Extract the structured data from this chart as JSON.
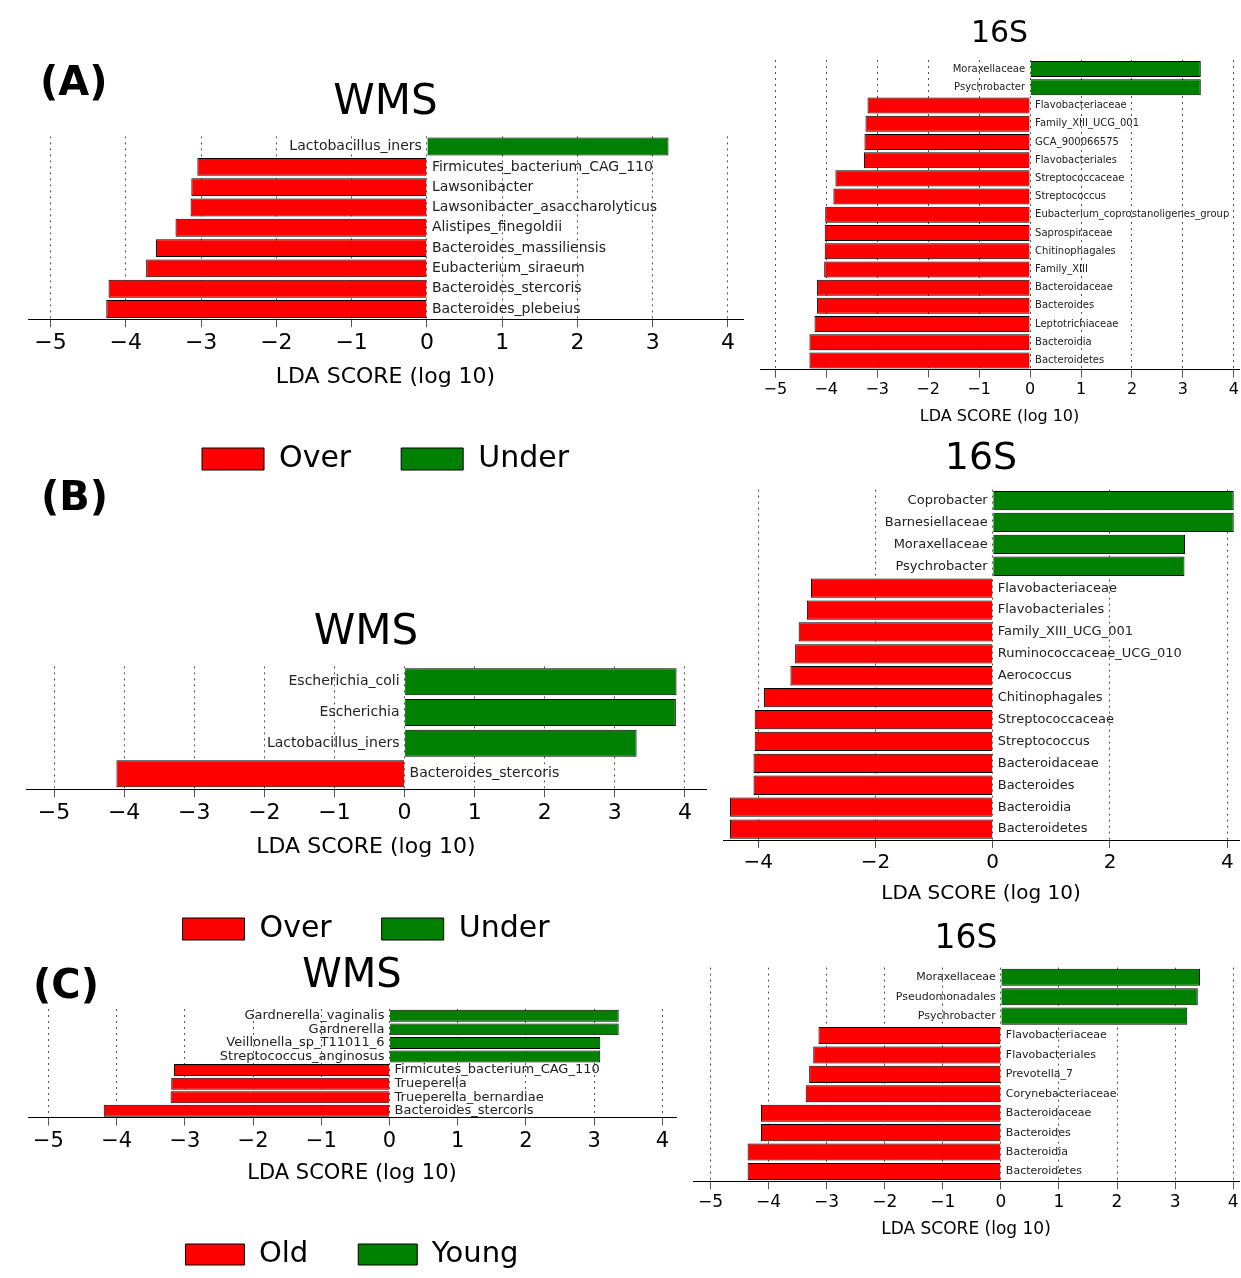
{
  "chart_data": [
    {
      "type": "bar",
      "orientation": "horizontal",
      "title": "WMS",
      "xlabel": "LDA SCORE (log 10)",
      "annotations": [
        "(A)"
      ],
      "categories": [
        "Lactobacillus_iners",
        "Firmicutes_bacterium_CAG_110",
        "Lawsonibacter",
        "Lawsonibacter_asaccharolyticus",
        "Alistipes_finegoldii",
        "Bacteroides_massiliensis",
        "Eubacterium_siraeum",
        "Bacteroides_stercoris",
        "Bacteroides_plebeius"
      ],
      "series": [
        {
          "name": "Over",
          "color": "#ff0000",
          "values": [
            null,
            -3.05,
            -3.13,
            -3.14,
            -3.34,
            -3.6,
            -3.73,
            -4.23,
            -4.26
          ]
        },
        {
          "name": "Under",
          "color": "#008000",
          "values": [
            3.21,
            null,
            null,
            null,
            null,
            null,
            null,
            null,
            null
          ]
        }
      ],
      "xlim": [
        -5.3,
        4.2
      ],
      "xticks": [
        -5,
        -4,
        -3,
        -2,
        -1,
        0,
        1,
        2,
        3,
        4
      ],
      "grid": "x",
      "legend": "bottom"
    },
    {
      "type": "bar",
      "orientation": "horizontal",
      "title": "16S",
      "xlabel": "LDA SCORE (log 10)",
      "categories": [
        "Moraxellaceae",
        "Psychrobacter",
        "Flavobacteriaceae",
        "Family_XIII_UCG_001",
        "GCA_900066575",
        "Flavobacteriales",
        "Streptococcaceae",
        "Streptococcus",
        "Eubacterium_coprostanoligenes_group",
        "Saprospiraceae",
        "Chitinophagales",
        "Family_XIII",
        "Bacteroidaceae",
        "Bacteroides",
        "Leptotrichiaceae",
        "Bacteroidia",
        "Bacteroidetes"
      ],
      "series": [
        {
          "color": "#ff0000",
          "values": [
            null,
            null,
            -3.19,
            -3.23,
            -3.25,
            -3.26,
            -3.82,
            -3.86,
            -4.02,
            -4.03,
            -4.03,
            -4.04,
            -4.18,
            -4.18,
            -4.23,
            -4.33,
            -4.33
          ]
        },
        {
          "color": "#008000",
          "values": [
            3.35,
            3.35,
            null,
            null,
            null,
            null,
            null,
            null,
            null,
            null,
            null,
            null,
            null,
            null,
            null,
            null,
            null
          ]
        }
      ],
      "xlim": [
        -5.3,
        4.1
      ],
      "xticks": [
        -5,
        -4,
        -3,
        -2,
        -1,
        0,
        1,
        2,
        3,
        4
      ],
      "grid": "x"
    },
    {
      "type": "bar",
      "orientation": "horizontal",
      "title": "WMS",
      "xlabel": "LDA SCORE (log 10)",
      "annotations": [
        "(B)"
      ],
      "categories": [
        "Escherichia_coli",
        "Escherichia",
        "Lactobacillus_iners",
        "Bacteroides_stercoris"
      ],
      "series": [
        {
          "name": "Over",
          "color": "#ff0000",
          "values": [
            null,
            null,
            null,
            -4.11
          ]
        },
        {
          "name": "Under",
          "color": "#008000",
          "values": [
            3.88,
            3.87,
            3.31,
            null
          ]
        }
      ],
      "xlim": [
        -5.4,
        4.3
      ],
      "xticks": [
        -5,
        -4,
        -3,
        -2,
        -1,
        0,
        1,
        2,
        3,
        4
      ],
      "grid": "x",
      "legend": "bottom"
    },
    {
      "type": "bar",
      "orientation": "horizontal",
      "title": "16S",
      "xlabel": "LDA SCORE (log 10)",
      "categories": [
        "Coprobacter",
        "Barnesiellaceae",
        "Moraxellaceae",
        "Psychrobacter",
        "Flavobacteriaceae",
        "Flavobacteriales",
        "Family_XIII_UCG_001",
        "Ruminococcaceae_UCG_010",
        "Aerococcus",
        "Chitinophagales",
        "Streptococcaceae",
        "Streptococcus",
        "Bacteroidaceae",
        "Bacteroides",
        "Bacteroidia",
        "Bacteroidetes"
      ],
      "series": [
        {
          "color": "#ff0000",
          "values": [
            null,
            null,
            null,
            null,
            -3.1,
            -3.17,
            -3.31,
            -3.37,
            -3.45,
            -3.9,
            -4.06,
            -4.06,
            -4.08,
            -4.08,
            -4.48,
            -4.48
          ]
        },
        {
          "color": "#008000",
          "values": [
            4.11,
            4.11,
            3.28,
            3.27,
            null,
            null,
            null,
            null,
            null,
            null,
            null,
            null,
            null,
            null,
            null,
            null
          ]
        }
      ],
      "xlim": [
        -4.6,
        4.2
      ],
      "xticks": [
        -4,
        -2,
        0,
        2,
        4
      ],
      "grid": "x"
    },
    {
      "type": "bar",
      "orientation": "horizontal",
      "title": "WMS",
      "xlabel": "LDA SCORE (log 10)",
      "annotations": [
        "(C)"
      ],
      "categories": [
        "Gardnerella_vaginalis",
        "Gardnerella",
        "Veillonella_sp_T11011_6",
        "Streptococcus_anginosus",
        "Firmicutes_bacterium_CAG_110",
        "Trueperella",
        "Trueperella_bernardiae",
        "Bacteroides_stercoris"
      ],
      "series": [
        {
          "name": "Old",
          "color": "#ff0000",
          "values": [
            null,
            null,
            null,
            null,
            -3.16,
            -3.2,
            -3.21,
            -4.19
          ]
        },
        {
          "name": "Young",
          "color": "#008000",
          "values": [
            3.36,
            3.36,
            3.09,
            3.09,
            null,
            null,
            null,
            null
          ]
        }
      ],
      "xlim": [
        -5.3,
        4.2
      ],
      "xticks": [
        -5,
        -4,
        -3,
        -2,
        -1,
        0,
        1,
        2,
        3,
        4
      ],
      "grid": "x",
      "legend": "bottom"
    },
    {
      "type": "bar",
      "orientation": "horizontal",
      "title": "16S",
      "xlabel": "LDA SCORE (log 10)",
      "categories": [
        "Moraxellaceae",
        "Pseudomonadales",
        "Psychrobacter",
        "Flavobacteriaceae",
        "Flavobacteriales",
        "Prevotella_7",
        "Corynebacteriaceae",
        "Bacteroidaceae",
        "Bacteroides",
        "Bacteroidia",
        "Bacteroidetes"
      ],
      "series": [
        {
          "color": "#ff0000",
          "values": [
            null,
            null,
            null,
            -3.14,
            -3.23,
            -3.3,
            -3.36,
            -4.13,
            -4.13,
            -4.36,
            -4.36
          ]
        },
        {
          "color": "#008000",
          "values": [
            3.43,
            3.39,
            3.21,
            null,
            null,
            null,
            null,
            null,
            null,
            null,
            null
          ]
        }
      ],
      "xlim": [
        -5.3,
        4.1
      ],
      "xticks": [
        -5,
        -4,
        -3,
        -2,
        -1,
        0,
        1,
        2,
        3,
        4
      ],
      "grid": "x"
    }
  ]
}
